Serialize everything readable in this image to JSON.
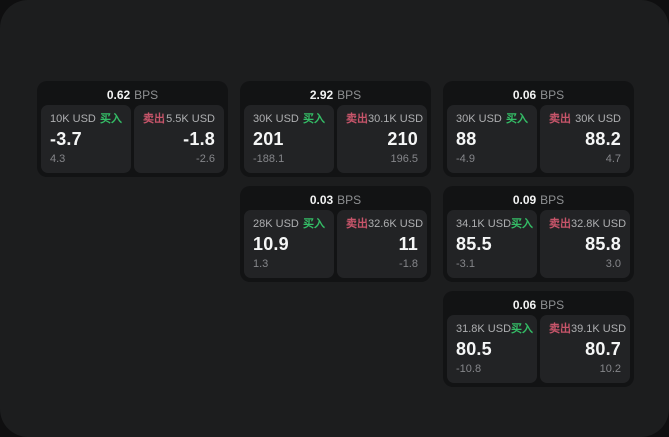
{
  "labels": {
    "bps_unit": "BPS",
    "buy": "买入",
    "sell": "卖出"
  },
  "colors": {
    "panel_bg": "#1c1d1e",
    "card_bg": "#121314",
    "tile_bg": "#222325",
    "buy_green": "#34bd66",
    "sell_red": "#c7556a",
    "value_white": "#f5f6f6",
    "muted_gray": "#85868a"
  },
  "cards": [
    {
      "bps": "0.62",
      "buy": {
        "notional": "10K USD",
        "price": "-3.7",
        "sub": "4.3"
      },
      "sell": {
        "notional": "5.5K USD",
        "price": "-1.8",
        "sub": "-2.6"
      }
    },
    {
      "bps": "2.92",
      "buy": {
        "notional": "30K USD",
        "price": "201",
        "sub": "-188.1"
      },
      "sell": {
        "notional": "30.1K USD",
        "price": "210",
        "sub": "196.5"
      }
    },
    {
      "bps": "0.06",
      "buy": {
        "notional": "30K USD",
        "price": "88",
        "sub": "-4.9"
      },
      "sell": {
        "notional": "30K USD",
        "price": "88.2",
        "sub": "4.7"
      }
    },
    {
      "bps": "0.03",
      "buy": {
        "notional": "28K USD",
        "price": "10.9",
        "sub": "1.3"
      },
      "sell": {
        "notional": "32.6K USD",
        "price": "11",
        "sub": "-1.8"
      }
    },
    {
      "bps": "0.09",
      "buy": {
        "notional": "34.1K USD",
        "price": "85.5",
        "sub": "-3.1"
      },
      "sell": {
        "notional": "32.8K USD",
        "price": "85.8",
        "sub": "3.0"
      }
    },
    {
      "bps": "0.06",
      "buy": {
        "notional": "31.8K USD",
        "price": "80.5",
        "sub": "-10.8"
      },
      "sell": {
        "notional": "39.1K USD",
        "price": "80.7",
        "sub": "10.2"
      }
    }
  ]
}
